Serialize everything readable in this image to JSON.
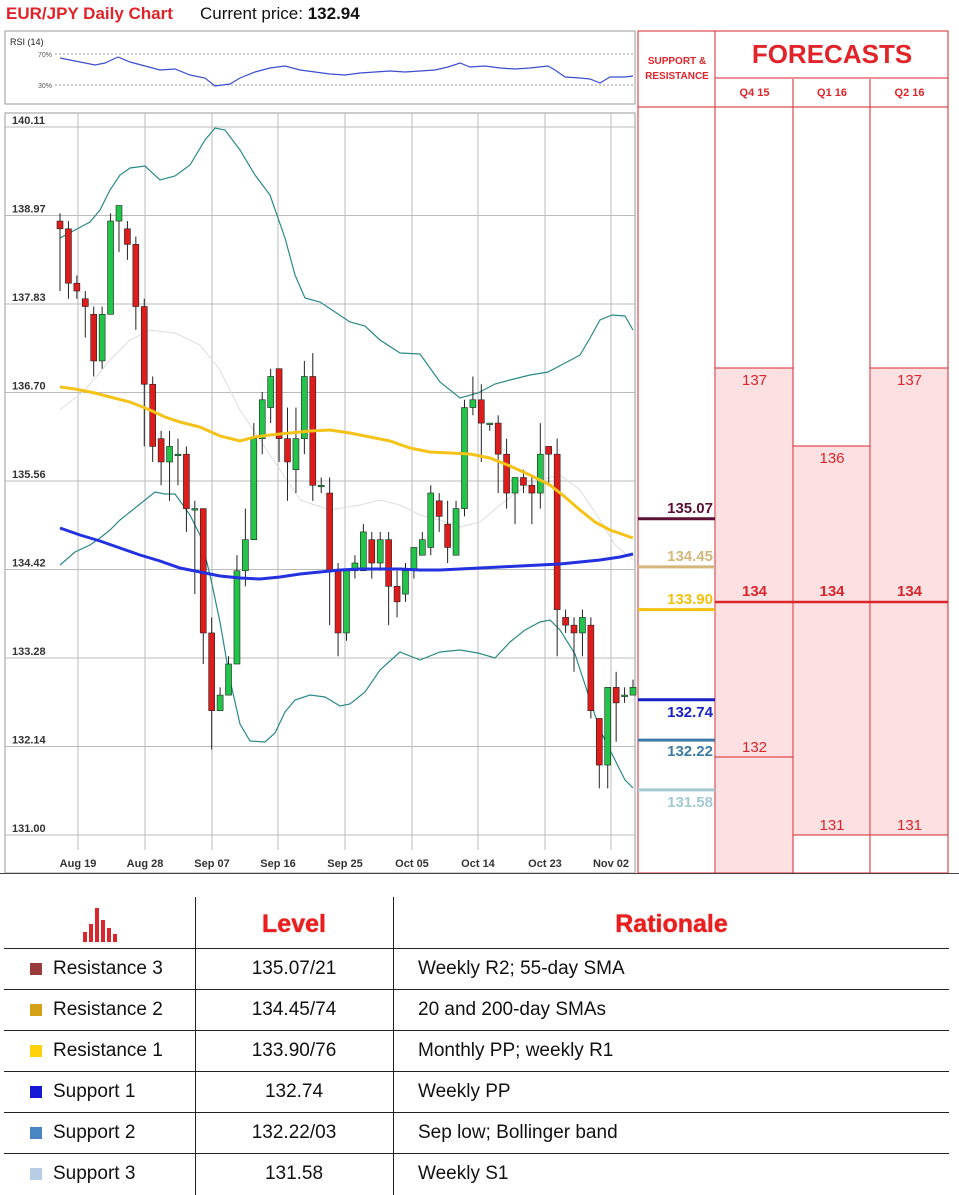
{
  "header": {
    "title": "EUR/JPY Daily Chart",
    "price_label": "Current price:",
    "price_value": "132.94"
  },
  "rsi": {
    "label": "RSI (14)",
    "levels": [
      "70%",
      "30%"
    ]
  },
  "chart_data": {
    "type": "candlestick",
    "y_ticks": [
      "140.11",
      "138.97",
      "137.83",
      "136.70",
      "135.56",
      "134.42",
      "133.28",
      "132.14",
      "131.00"
    ],
    "x_ticks": [
      "Aug 19",
      "Aug 28",
      "Sep 07",
      "Sep 16",
      "Sep 25",
      "Oct 05",
      "Oct 14",
      "Oct 23",
      "Nov 02"
    ],
    "ylim": [
      131.0,
      140.11
    ],
    "colors": {
      "up": "#22c44a",
      "down": "#dd1c1c",
      "sma200": "#2331e0",
      "sma55": "#f5c218",
      "bands": "#2a8a86"
    },
    "candles": [
      [
        138.9,
        139.0,
        138.0,
        138.8
      ],
      [
        138.8,
        138.9,
        137.9,
        138.1
      ],
      [
        138.1,
        138.2,
        137.9,
        138.0
      ],
      [
        137.9,
        138.0,
        137.4,
        137.8
      ],
      [
        137.7,
        137.8,
        136.9,
        137.1
      ],
      [
        137.1,
        137.8,
        137.0,
        137.7
      ],
      [
        137.7,
        139.0,
        137.7,
        138.9
      ],
      [
        138.9,
        139.1,
        138.5,
        139.1
      ],
      [
        138.8,
        138.9,
        138.4,
        138.6
      ],
      [
        138.6,
        138.7,
        137.5,
        137.8
      ],
      [
        137.8,
        137.9,
        136.0,
        136.8
      ],
      [
        136.8,
        136.9,
        135.8,
        136.0
      ],
      [
        136.1,
        136.2,
        135.5,
        135.8
      ],
      [
        135.8,
        136.2,
        135.3,
        136.0
      ],
      [
        135.9,
        136.1,
        135.5,
        135.9
      ],
      [
        135.9,
        136.0,
        134.9,
        135.2
      ],
      [
        135.2,
        135.3,
        134.1,
        135.2
      ],
      [
        135.2,
        135.2,
        133.2,
        133.6
      ],
      [
        133.6,
        133.8,
        132.1,
        132.6
      ],
      [
        132.6,
        132.9,
        132.6,
        132.8
      ],
      [
        132.8,
        133.3,
        132.8,
        133.2
      ],
      [
        133.2,
        134.6,
        133.2,
        134.4
      ],
      [
        134.4,
        135.2,
        134.2,
        134.8
      ],
      [
        134.8,
        136.3,
        134.8,
        136.1
      ],
      [
        136.1,
        136.7,
        135.9,
        136.6
      ],
      [
        136.5,
        137.0,
        136.3,
        136.9
      ],
      [
        137.0,
        137.0,
        135.8,
        136.1
      ],
      [
        136.1,
        136.5,
        135.3,
        135.8
      ],
      [
        135.7,
        136.5,
        135.4,
        136.1
      ],
      [
        136.1,
        137.1,
        135.9,
        136.9
      ],
      [
        136.9,
        137.2,
        135.3,
        135.5
      ],
      [
        135.5,
        135.6,
        135.4,
        135.5
      ],
      [
        135.4,
        135.6,
        133.7,
        134.4
      ],
      [
        134.4,
        134.5,
        133.3,
        133.6
      ],
      [
        133.6,
        134.4,
        133.5,
        134.4
      ],
      [
        134.4,
        134.6,
        134.3,
        134.5
      ],
      [
        134.4,
        135.0,
        134.4,
        134.9
      ],
      [
        134.8,
        134.9,
        134.3,
        134.5
      ],
      [
        134.5,
        134.9,
        134.4,
        134.8
      ],
      [
        134.8,
        134.9,
        133.7,
        134.2
      ],
      [
        134.2,
        134.4,
        133.8,
        134.0
      ],
      [
        134.1,
        134.5,
        134.0,
        134.4
      ],
      [
        134.4,
        134.7,
        134.3,
        134.7
      ],
      [
        134.6,
        134.9,
        134.6,
        134.8
      ],
      [
        134.7,
        135.5,
        134.6,
        135.4
      ],
      [
        135.3,
        135.4,
        134.9,
        135.1
      ],
      [
        135.0,
        135.3,
        134.5,
        134.7
      ],
      [
        134.6,
        135.3,
        134.6,
        135.2
      ],
      [
        135.2,
        136.6,
        135.1,
        136.5
      ],
      [
        136.5,
        136.9,
        136.4,
        136.6
      ],
      [
        136.6,
        136.8,
        135.8,
        136.3
      ],
      [
        136.3,
        136.3,
        136.2,
        136.3
      ],
      [
        136.3,
        136.4,
        135.4,
        135.9
      ],
      [
        135.9,
        136.1,
        135.2,
        135.4
      ],
      [
        135.4,
        135.6,
        135.0,
        135.6
      ],
      [
        135.6,
        135.7,
        135.4,
        135.5
      ],
      [
        135.5,
        135.6,
        135.0,
        135.4
      ],
      [
        135.4,
        136.3,
        135.2,
        135.9
      ],
      [
        136.0,
        136.0,
        135.5,
        135.9
      ],
      [
        135.9,
        136.1,
        133.3,
        133.9
      ],
      [
        133.8,
        133.9,
        133.6,
        133.7
      ],
      [
        133.7,
        133.8,
        133.1,
        133.6
      ],
      [
        133.6,
        133.9,
        133.3,
        133.8
      ],
      [
        133.7,
        133.8,
        132.5,
        132.6
      ],
      [
        132.5,
        132.5,
        131.6,
        131.9
      ],
      [
        131.9,
        132.9,
        131.6,
        132.9
      ],
      [
        132.9,
        133.1,
        132.2,
        132.7
      ],
      [
        132.8,
        132.9,
        132.7,
        132.8
      ],
      [
        132.8,
        133.0,
        132.8,
        132.9
      ]
    ],
    "support_resistance": [
      {
        "value": "135.07",
        "price": 135.07,
        "color": "#5c1033"
      },
      {
        "value": "134.45",
        "price": 134.45,
        "color": "#d5b67c"
      },
      {
        "value": "133.90",
        "price": 133.9,
        "color": "#f3c10c"
      },
      {
        "value": "132.74",
        "price": 132.74,
        "color": "#1721c8"
      },
      {
        "value": "132.22",
        "price": 132.22,
        "color": "#3d7aa6"
      },
      {
        "value": "131.58",
        "price": 131.58,
        "color": "#a3c9d1"
      }
    ],
    "forecasts": {
      "title": "FORECASTS",
      "sr_header": "SUPPORT & RESISTANCE",
      "columns": [
        {
          "label": "Q4 15",
          "high": 137,
          "mid": 134,
          "low": 132
        },
        {
          "label": "Q1 16",
          "high": 136,
          "mid": 134,
          "low": 131
        },
        {
          "label": "Q2 16",
          "high": 137,
          "mid": 134,
          "low": 131
        }
      ]
    }
  },
  "table": {
    "header_level": "Level",
    "header_rationale": "Rationale",
    "rows": [
      {
        "name": "Resistance 3",
        "level": "135.07/21",
        "rationale": "Weekly R2; 55-day SMA",
        "color": "#9b3c3c"
      },
      {
        "name": "Resistance 2",
        "level": "134.45/74",
        "rationale": "20 and 200-day SMAs",
        "color": "#d4a017"
      },
      {
        "name": "Resistance 1",
        "level": "133.90/76",
        "rationale": "Monthly PP; weekly R1",
        "color": "#fdd20a"
      },
      {
        "name": "Support 1",
        "level": "132.74",
        "rationale": "Weekly PP",
        "color": "#1717d6"
      },
      {
        "name": "Support 2",
        "level": "132.22/03",
        "rationale": "Sep low; Bollinger band",
        "color": "#4a86c5"
      },
      {
        "name": "Support 3",
        "level": "131.58",
        "rationale": "Weekly S1",
        "color": "#b7cde6"
      }
    ]
  }
}
